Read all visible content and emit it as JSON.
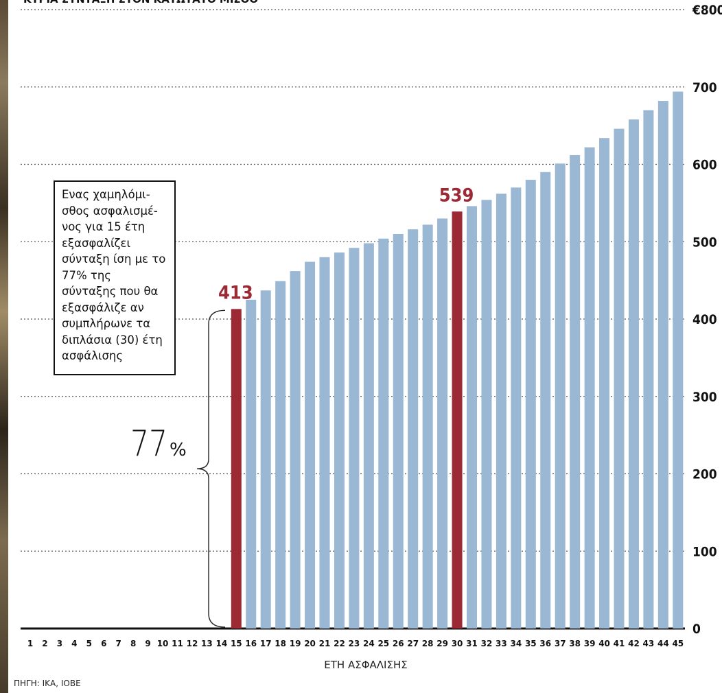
{
  "chart_data": {
    "type": "bar",
    "title": "ΚΥΡΙΑ ΣΥΝΤΑΞΗ ΣΤΟΝ ΚΑΤΩΤΑΤΟ ΜΙΣΘΟ",
    "xlabel": "ΕΤΗ ΑΣΦΑΛΙΣΗΣ",
    "ylabel": "",
    "ylim": [
      0,
      800
    ],
    "yticks": [
      "0",
      "100",
      "200",
      "300",
      "400",
      "500",
      "600",
      "700",
      "€800"
    ],
    "categories": [
      "1",
      "2",
      "3",
      "4",
      "5",
      "6",
      "7",
      "8",
      "9",
      "10",
      "11",
      "12",
      "13",
      "14",
      "15",
      "16",
      "17",
      "18",
      "19",
      "20",
      "21",
      "22",
      "23",
      "24",
      "25",
      "26",
      "27",
      "28",
      "29",
      "30",
      "31",
      "32",
      "33",
      "34",
      "35",
      "36",
      "37",
      "38",
      "39",
      "40",
      "41",
      "42",
      "43",
      "44",
      "45"
    ],
    "values": [
      null,
      null,
      null,
      null,
      null,
      null,
      null,
      null,
      null,
      null,
      null,
      null,
      null,
      null,
      413,
      425,
      437,
      449,
      462,
      474,
      480,
      486,
      492,
      498,
      504,
      510,
      516,
      522,
      530,
      539,
      546,
      554,
      562,
      570,
      580,
      590,
      601,
      612,
      622,
      634,
      646,
      658,
      670,
      682,
      694
    ],
    "highlights": [
      {
        "category": "15",
        "value": 413,
        "label": "413",
        "color": "#9b2a35"
      },
      {
        "category": "30",
        "value": 539,
        "label": "539",
        "color": "#9b2a35"
      }
    ],
    "bar_color": "#9ab7d4",
    "grid": true,
    "ratio_annotation": {
      "value": "77",
      "unit": "%"
    },
    "annotation_text": "Ενας χαμηλόμι-\nσθος ασφαλισμέ-\nνος για 15 έτη\nεξασφαλίζει\nσύνταξη ίση με το\n77% της\nσύνταξης που θα\nεξασφάλιζε αν\nσυμπλήρωνε τα\nδιπλάσια (30) έτη\nασφάλισης",
    "source": "ΠΗΓΗ: ΙΚΑ, ΙΟΒΕ"
  }
}
